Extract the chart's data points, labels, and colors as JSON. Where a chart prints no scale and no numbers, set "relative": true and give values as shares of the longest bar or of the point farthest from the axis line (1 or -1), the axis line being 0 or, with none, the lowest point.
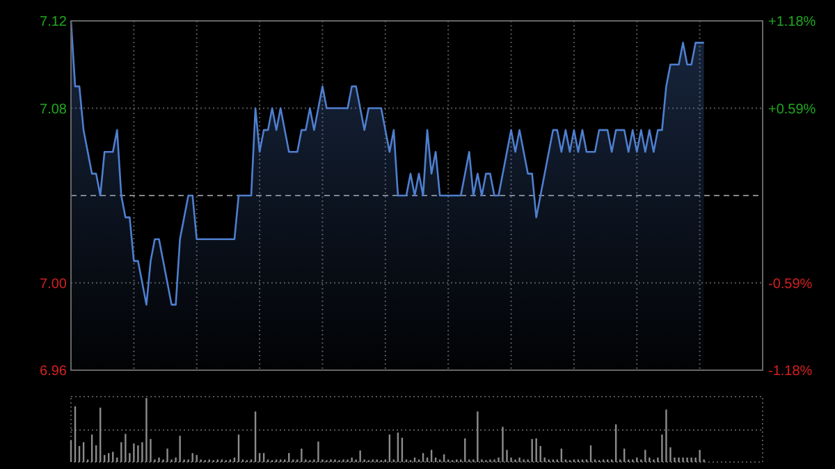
{
  "chart_data": [
    {
      "type": "area",
      "categories": [
        null,
        null,
        null,
        null,
        null,
        null,
        null,
        null,
        null,
        null,
        null,
        null,
        null,
        null,
        null,
        null,
        null,
        null,
        null,
        null,
        null,
        null,
        null,
        null,
        null,
        null,
        null,
        null,
        null,
        null,
        null,
        null,
        null,
        null,
        null,
        null,
        null,
        null,
        null,
        null,
        null,
        null,
        null,
        null,
        null,
        null,
        null,
        null,
        null,
        null,
        null,
        null,
        null,
        null,
        null,
        null,
        null,
        null,
        null,
        null,
        null,
        null,
        null,
        null,
        null,
        null,
        null,
        null,
        null,
        null,
        null,
        null,
        null,
        null,
        null,
        null,
        null,
        null,
        null,
        null,
        null,
        null,
        null,
        null,
        null,
        null,
        null,
        null,
        null,
        null,
        null,
        null,
        null,
        null,
        null,
        null,
        null,
        null,
        null,
        null,
        null,
        null,
        null,
        null,
        null,
        null,
        null,
        null,
        null,
        null,
        null,
        null,
        null,
        null,
        null,
        null,
        null,
        null,
        null,
        null,
        null,
        null,
        null,
        null,
        null,
        null,
        null,
        null,
        null,
        null,
        null,
        null,
        null,
        null,
        null,
        null,
        null,
        null,
        null,
        null,
        null,
        null,
        null,
        null,
        null,
        null,
        null,
        null,
        null,
        null,
        null,
        null
      ],
      "series": [
        {
          "color": "#4f7fd0",
          "values": [
            7.12,
            7.09,
            7.09,
            7.07,
            7.06,
            7.05,
            7.05,
            7.04,
            7.06,
            7.06,
            7.06,
            7.07,
            7.04,
            7.03,
            7.03,
            7.01,
            7.01,
            7.0,
            6.99,
            7.01,
            7.02,
            7.02,
            7.01,
            7.0,
            6.99,
            6.99,
            7.02,
            7.03,
            7.04,
            7.04,
            7.02,
            7.02,
            7.02,
            7.02,
            7.02,
            7.02,
            7.02,
            7.02,
            7.02,
            7.02,
            7.04,
            7.04,
            7.04,
            7.04,
            7.08,
            7.06,
            7.07,
            7.07,
            7.08,
            7.07,
            7.08,
            7.07,
            7.06,
            7.06,
            7.06,
            7.07,
            7.07,
            7.08,
            7.07,
            7.08,
            7.09,
            7.08,
            7.08,
            7.08,
            7.08,
            7.08,
            7.08,
            7.09,
            7.09,
            7.08,
            7.07,
            7.08,
            7.08,
            7.08,
            7.08,
            7.07,
            7.06,
            7.07,
            7.04,
            7.04,
            7.04,
            7.05,
            7.04,
            7.05,
            7.04,
            7.07,
            7.05,
            7.06,
            7.04,
            7.04,
            7.04,
            7.04,
            7.04,
            7.04,
            7.05,
            7.06,
            7.04,
            7.05,
            7.04,
            7.05,
            7.05,
            7.04,
            7.04,
            7.05,
            7.06,
            7.07,
            7.06,
            7.07,
            7.06,
            7.05,
            7.05,
            7.03,
            7.04,
            7.05,
            7.06,
            7.07,
            7.07,
            7.06,
            7.07,
            7.06,
            7.07,
            7.06,
            7.07,
            7.06,
            7.06,
            7.06,
            7.07,
            7.07,
            7.07,
            7.06,
            7.07,
            7.07,
            7.07,
            7.06,
            7.07,
            7.06,
            7.07,
            7.06,
            7.07,
            7.06,
            7.07,
            7.07,
            7.09,
            7.1,
            7.1,
            7.1,
            7.11,
            7.1,
            7.1,
            7.11,
            7.11,
            7.11
          ]
        }
      ],
      "ylim": [
        6.96,
        7.12
      ],
      "yticks": [
        6.96,
        {
          "value": 7.0,
          "label": "7.00"
        },
        7.08,
        7.12
      ],
      "y2lim": [
        -1.18,
        1.18
      ],
      "y2ticks": [
        {
          "value": -1.18,
          "label": "-1.18%"
        },
        {
          "value": -0.59,
          "label": "-0.59%"
        },
        {
          "value": 0.59,
          "label": "+0.59%"
        },
        {
          "value": 1.18,
          "label": "+1.18%"
        }
      ],
      "ref_lines": [
        {
          "axis": "y",
          "value": 7.04,
          "line_style": "dashed"
        }
      ],
      "grid": true
    },
    {
      "type": "bar",
      "relative": true,
      "color": "#8c8c8c",
      "ref_lines": [
        {
          "axis": "y",
          "value": 0.5,
          "line_style": "dotted"
        }
      ],
      "categories": [
        null,
        null,
        null,
        null,
        null,
        null,
        null,
        null,
        null,
        null,
        null,
        null,
        null,
        null,
        null,
        null,
        null,
        null,
        null,
        null,
        null,
        null,
        null,
        null,
        null,
        null,
        null,
        null,
        null,
        null,
        null,
        null,
        null,
        null,
        null,
        null,
        null,
        null,
        null,
        null,
        null,
        null,
        null,
        null,
        null,
        null,
        null,
        null,
        null,
        null,
        null,
        null,
        null,
        null,
        null,
        null,
        null,
        null,
        null,
        null,
        null,
        null,
        null,
        null,
        null,
        null,
        null,
        null,
        null,
        null,
        null,
        null,
        null,
        null,
        null,
        null,
        null,
        null,
        null,
        null,
        null,
        null,
        null,
        null,
        null,
        null,
        null,
        null,
        null,
        null,
        null,
        null,
        null,
        null,
        null,
        null,
        null,
        null,
        null,
        null,
        null,
        null,
        null,
        null,
        null,
        null,
        null,
        null,
        null,
        null,
        null,
        null,
        null,
        null,
        null,
        null,
        null,
        null,
        null,
        null,
        null,
        null,
        null,
        null,
        null,
        null,
        null,
        null,
        null,
        null,
        null,
        null,
        null,
        null,
        null,
        null,
        null,
        null,
        null,
        null,
        null,
        null,
        null,
        null,
        null,
        null,
        null,
        null,
        null,
        null,
        null,
        null
      ],
      "values": [
        0.34,
        0.87,
        0.25,
        0.31,
        0.04,
        0.43,
        0.26,
        0.85,
        0.11,
        0.14,
        0.16,
        0.07,
        0.31,
        0.44,
        0.14,
        0.29,
        0.26,
        0.31,
        1.0,
        0.36,
        0.04,
        0.07,
        0.04,
        0.21,
        0.04,
        0.07,
        0.41,
        0.04,
        0.04,
        0.14,
        0.11,
        0.04,
        0.03,
        0.04,
        0.03,
        0.04,
        0.04,
        0.03,
        0.04,
        0.07,
        0.43,
        0.04,
        0.03,
        0.04,
        0.79,
        0.14,
        0.14,
        0.04,
        0.03,
        0.04,
        0.04,
        0.04,
        0.14,
        0.04,
        0.04,
        0.21,
        0.04,
        0.03,
        0.04,
        0.32,
        0.04,
        0.03,
        0.04,
        0.04,
        0.03,
        0.04,
        0.04,
        0.07,
        0.04,
        0.18,
        0.04,
        0.03,
        0.04,
        0.04,
        0.03,
        0.04,
        0.43,
        0.04,
        0.46,
        0.38,
        0.04,
        0.03,
        0.07,
        0.04,
        0.14,
        0.07,
        0.19,
        0.07,
        0.04,
        0.12,
        0.04,
        0.03,
        0.04,
        0.04,
        0.37,
        0.04,
        0.04,
        0.79,
        0.04,
        0.03,
        0.04,
        0.04,
        0.07,
        0.55,
        0.19,
        0.07,
        0.04,
        0.07,
        0.04,
        0.04,
        0.36,
        0.37,
        0.25,
        0.07,
        0.04,
        0.04,
        0.04,
        0.21,
        0.04,
        0.03,
        0.04,
        0.04,
        0.04,
        0.04,
        0.26,
        0.04,
        0.03,
        0.04,
        0.04,
        0.04,
        0.59,
        0.04,
        0.21,
        0.04,
        0.04,
        0.07,
        0.04,
        0.19,
        0.07,
        0.04,
        0.07,
        0.43,
        0.82,
        0.23,
        0.07,
        0.07,
        0.07,
        0.07,
        0.07,
        0.07,
        0.19,
        0.04
      ]
    }
  ]
}
